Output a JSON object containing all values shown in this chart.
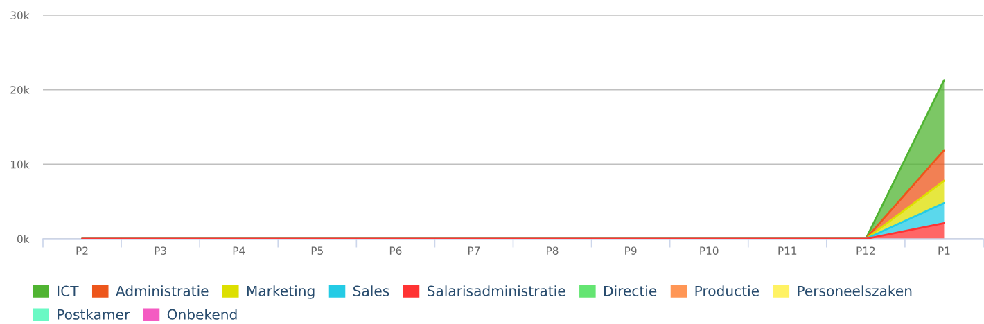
{
  "chart_data": {
    "type": "area",
    "stacked": true,
    "categories": [
      "P2",
      "P3",
      "P4",
      "P5",
      "P6",
      "P7",
      "P8",
      "P9",
      "P10",
      "P11",
      "P12",
      "P1"
    ],
    "series": [
      {
        "name": "Onbekend",
        "color": "#f45bc2",
        "values": [
          null,
          null,
          null,
          null,
          null,
          null,
          null,
          null,
          null,
          null,
          null,
          null
        ]
      },
      {
        "name": "Postkamer",
        "color": "#6af9c4",
        "values": [
          null,
          null,
          null,
          null,
          null,
          null,
          null,
          null,
          null,
          null,
          null,
          null
        ]
      },
      {
        "name": "Personeelszaken",
        "color": "#fff263",
        "values": [
          null,
          null,
          null,
          null,
          null,
          null,
          null,
          null,
          null,
          null,
          null,
          null
        ]
      },
      {
        "name": "Productie",
        "color": "#ff9655",
        "values": [
          null,
          null,
          null,
          null,
          null,
          null,
          null,
          null,
          null,
          null,
          null,
          null
        ]
      },
      {
        "name": "Directie",
        "color": "#64e572",
        "values": [
          null,
          null,
          null,
          null,
          null,
          null,
          null,
          null,
          null,
          null,
          null,
          null
        ]
      },
      {
        "name": "Salarisadministratie",
        "color": "#ff3333",
        "values": [
          0,
          0,
          0,
          0,
          0,
          0,
          0,
          0,
          0,
          0,
          0,
          2100
        ]
      },
      {
        "name": "Sales",
        "color": "#24cbe5",
        "values": [
          0,
          0,
          0,
          0,
          0,
          0,
          0,
          0,
          0,
          0,
          0,
          2700
        ]
      },
      {
        "name": "Marketing",
        "color": "#dddf00",
        "values": [
          0,
          0,
          0,
          0,
          0,
          0,
          0,
          0,
          0,
          0,
          0,
          3000
        ]
      },
      {
        "name": "Administratie",
        "color": "#ed561b",
        "values": [
          0,
          0,
          0,
          0,
          0,
          0,
          0,
          0,
          0,
          0,
          0,
          4100
        ]
      },
      {
        "name": "ICT",
        "color": "#50b432",
        "values": [
          0,
          0,
          0,
          0,
          0,
          0,
          0,
          0,
          0,
          0,
          0,
          9400
        ]
      }
    ],
    "ylim": [
      0,
      30000
    ],
    "yticks": [
      {
        "value": 0,
        "label": "0k"
      },
      {
        "value": 10000,
        "label": "10k"
      },
      {
        "value": 20000,
        "label": "20k"
      },
      {
        "value": 30000,
        "label": "30k"
      }
    ],
    "grid": "y",
    "legend": "bottom"
  }
}
